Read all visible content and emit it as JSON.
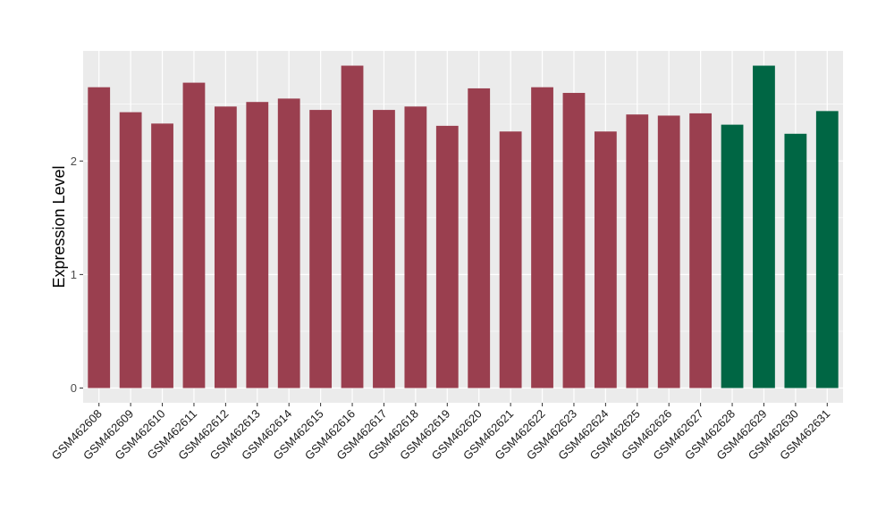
{
  "chart_data": {
    "type": "bar",
    "ylabel": "Expression Level",
    "xlabel": "",
    "ylim": [
      -0.13,
      2.97
    ],
    "yticks": [
      0,
      1,
      2
    ],
    "grid": true,
    "categories": [
      "GSM462608",
      "GSM462609",
      "GSM462610",
      "GSM462611",
      "GSM462612",
      "GSM462613",
      "GSM462614",
      "GSM462615",
      "GSM462616",
      "GSM462617",
      "GSM462618",
      "GSM462619",
      "GSM462620",
      "GSM462621",
      "GSM462622",
      "GSM462623",
      "GSM462624",
      "GSM462625",
      "GSM462626",
      "GSM462627",
      "GSM462628",
      "GSM462629",
      "GSM462630",
      "GSM462631"
    ],
    "values": [
      2.65,
      2.43,
      2.33,
      2.69,
      2.48,
      2.52,
      2.55,
      2.45,
      2.84,
      2.45,
      2.48,
      2.31,
      2.64,
      2.26,
      2.65,
      2.6,
      2.26,
      2.41,
      2.4,
      2.42,
      2.32,
      2.84,
      2.24,
      2.44
    ],
    "colors": [
      "#9a3f4f",
      "#9a3f4f",
      "#9a3f4f",
      "#9a3f4f",
      "#9a3f4f",
      "#9a3f4f",
      "#9a3f4f",
      "#9a3f4f",
      "#9a3f4f",
      "#9a3f4f",
      "#9a3f4f",
      "#9a3f4f",
      "#9a3f4f",
      "#9a3f4f",
      "#9a3f4f",
      "#9a3f4f",
      "#9a3f4f",
      "#9a3f4f",
      "#9a3f4f",
      "#9a3f4f",
      "#006644",
      "#006644",
      "#006644",
      "#006644"
    ],
    "panel_background": "#ebebeb",
    "grid_color": "#ffffff"
  }
}
